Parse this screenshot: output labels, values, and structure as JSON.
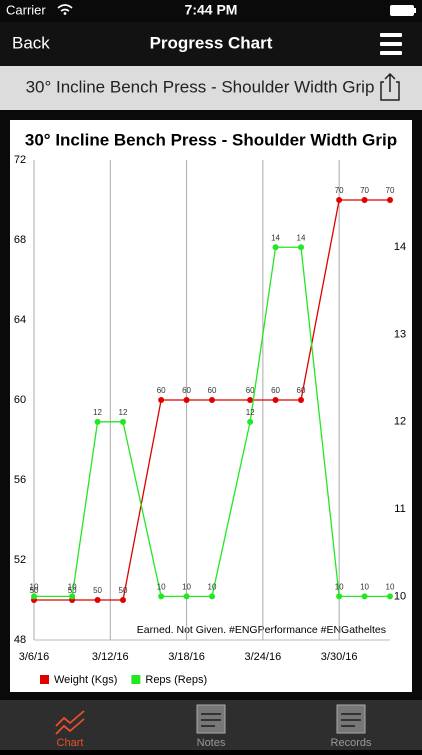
{
  "status_bar": {
    "carrier": "Carrier",
    "time": "7:44 PM"
  },
  "nav": {
    "back": "Back",
    "title": "Progress Chart"
  },
  "subheader": {
    "title": "30° Incline Bench Press - Shoulder Width Grip"
  },
  "tabs": [
    "Chart",
    "Notes",
    "Records"
  ],
  "chart_data": {
    "type": "line",
    "title": "30° Incline Bench Press - Shoulder Width Grip",
    "annotation": "Earned. Not Given. #ENGPerformance #ENGatheltes",
    "x": [
      "3/6/16",
      "3/9/16",
      "3/11/16",
      "3/13/16",
      "3/16/16",
      "3/18/16",
      "3/20/16",
      "3/23/16",
      "3/25/16",
      "3/27/16",
      "3/30/16",
      "4/1/16",
      "4/3/16"
    ],
    "xlim": [
      "3/6/16",
      "4/3/16"
    ],
    "xticks": [
      "3/6/16",
      "3/12/16",
      "3/18/16",
      "3/24/16",
      "3/30/16"
    ],
    "ylim": [
      48,
      72
    ],
    "yticks": [
      48,
      52,
      56,
      60,
      64,
      68,
      72
    ],
    "y2lim": [
      9.5,
      15
    ],
    "y2ticks": [
      10,
      11,
      12,
      13,
      14
    ],
    "grid": "x",
    "legend": "bottom-left",
    "series": [
      {
        "name": "Weight (Kgs)",
        "color": "#e00000",
        "axis": "y",
        "values": [
          50,
          50,
          50,
          50,
          60,
          60,
          60,
          60,
          60,
          60,
          70,
          70,
          70
        ]
      },
      {
        "name": "Reps (Reps)",
        "color": "#22e822",
        "axis": "y2",
        "values": [
          10,
          10,
          12,
          12,
          10,
          10,
          10,
          12,
          14,
          14,
          10,
          10,
          10
        ]
      }
    ]
  }
}
